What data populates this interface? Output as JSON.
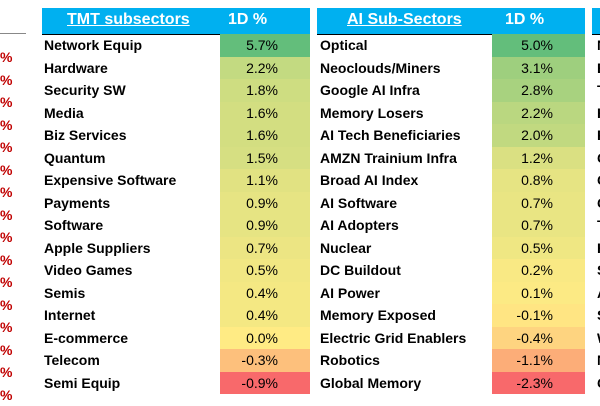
{
  "chart_data": [
    {
      "type": "table",
      "title": "TMT subsectors",
      "value_header": "1D %",
      "rows": [
        {
          "name": "Network Equip",
          "value": 5.7,
          "label": "5.7%"
        },
        {
          "name": "Hardware",
          "value": 2.2,
          "label": "2.2%"
        },
        {
          "name": "Security SW",
          "value": 1.8,
          "label": "1.8%"
        },
        {
          "name": "Media",
          "value": 1.6,
          "label": "1.6%"
        },
        {
          "name": "Biz Services",
          "value": 1.6,
          "label": "1.6%"
        },
        {
          "name": "Quantum",
          "value": 1.5,
          "label": "1.5%"
        },
        {
          "name": "Expensive Software",
          "value": 1.1,
          "label": "1.1%"
        },
        {
          "name": "Payments",
          "value": 0.9,
          "label": "0.9%"
        },
        {
          "name": "Software",
          "value": 0.9,
          "label": "0.9%"
        },
        {
          "name": "Apple Suppliers",
          "value": 0.7,
          "label": "0.7%"
        },
        {
          "name": "Video Games",
          "value": 0.5,
          "label": "0.5%"
        },
        {
          "name": "Semis",
          "value": 0.4,
          "label": "0.4%"
        },
        {
          "name": "Internet",
          "value": 0.4,
          "label": "0.4%"
        },
        {
          "name": "E-commerce",
          "value": 0.0,
          "label": "0.0%"
        },
        {
          "name": "Telecom",
          "value": -0.3,
          "label": "-0.3%"
        },
        {
          "name": "Semi Equip",
          "value": -0.9,
          "label": "-0.9%"
        }
      ]
    },
    {
      "type": "table",
      "title": "AI Sub-Sectors",
      "value_header": "1D %",
      "rows": [
        {
          "name": "Optical",
          "value": 5.0,
          "label": "5.0%"
        },
        {
          "name": "Neoclouds/Miners",
          "value": 3.1,
          "label": "3.1%"
        },
        {
          "name": "Google AI Infra",
          "value": 2.8,
          "label": "2.8%"
        },
        {
          "name": "Memory Losers",
          "value": 2.2,
          "label": "2.2%"
        },
        {
          "name": "AI Tech Beneficiaries",
          "value": 2.0,
          "label": "2.0%"
        },
        {
          "name": "AMZN Trainium Infra",
          "value": 1.2,
          "label": "1.2%"
        },
        {
          "name": "Broad AI Index",
          "value": 0.8,
          "label": "0.8%"
        },
        {
          "name": "AI Software",
          "value": 0.7,
          "label": "0.7%"
        },
        {
          "name": "AI Adopters",
          "value": 0.7,
          "label": "0.7%"
        },
        {
          "name": "Nuclear",
          "value": 0.5,
          "label": "0.5%"
        },
        {
          "name": "DC Buildout",
          "value": 0.2,
          "label": "0.2%"
        },
        {
          "name": "AI Power",
          "value": 0.1,
          "label": "0.1%"
        },
        {
          "name": "Memory Exposed",
          "value": -0.1,
          "label": "-0.1%"
        },
        {
          "name": "Electric Grid Enablers",
          "value": -0.4,
          "label": "-0.4%"
        },
        {
          "name": "Robotics",
          "value": -1.1,
          "label": "-1.1%"
        },
        {
          "name": "Global Memory",
          "value": -2.3,
          "label": "-2.3%"
        }
      ]
    }
  ],
  "colors": {
    "header_bg": "#00b0f0",
    "green": "#63be7b",
    "yellow": "#ffeb84",
    "red": "#f8696b"
  },
  "left_edge": [
    "%",
    "%",
    "%",
    "%",
    "%",
    "%",
    "%",
    "%",
    "%",
    "%",
    "%",
    "%",
    "%",
    "%",
    "%",
    "%"
  ],
  "right_edge": [
    "N",
    "E",
    "T",
    "H",
    "F",
    "C",
    "C",
    "C",
    "T",
    "H",
    "S",
    "A",
    "S",
    "W",
    "N",
    "C"
  ]
}
